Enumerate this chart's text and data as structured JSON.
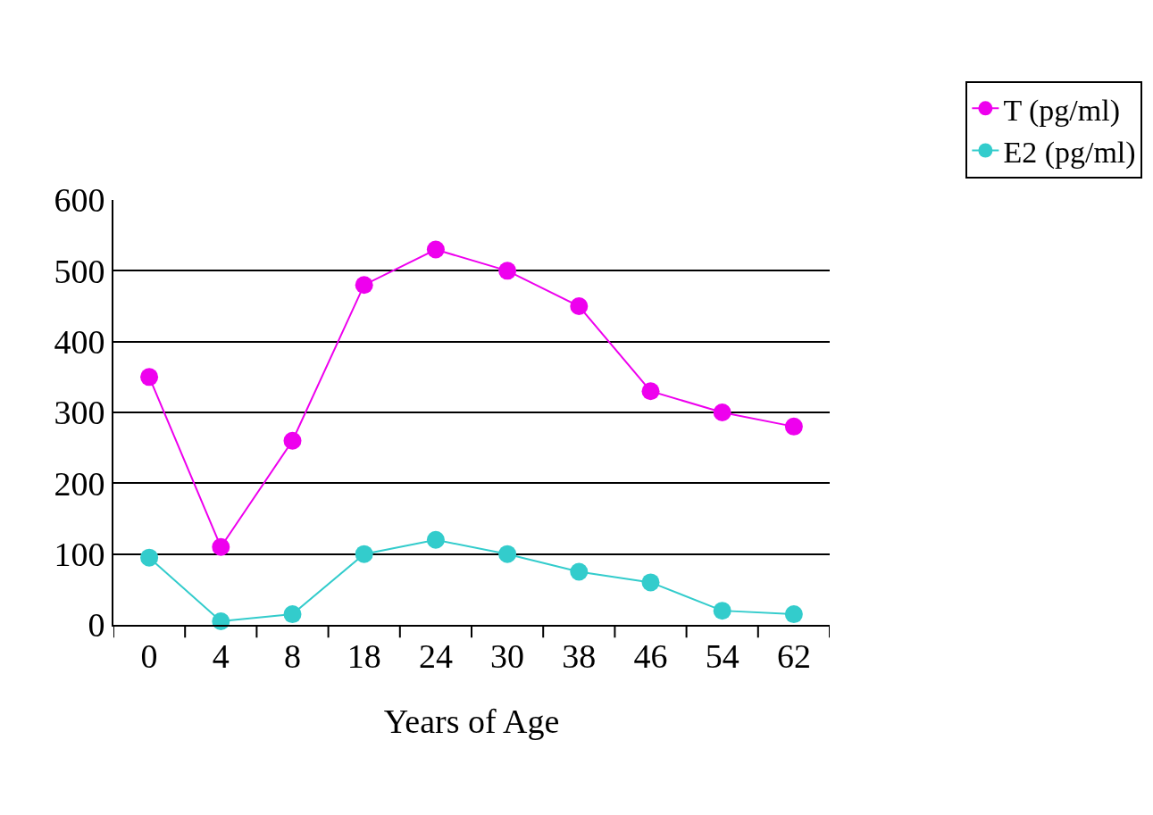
{
  "chart_data": {
    "type": "line",
    "xlabel": "Years of Age",
    "categories": [
      "0",
      "4",
      "8",
      "18",
      "24",
      "30",
      "38",
      "46",
      "54",
      "62"
    ],
    "series": [
      {
        "name": "T (pg/ml)",
        "color": "#ee00ee",
        "values": [
          350,
          110,
          260,
          480,
          530,
          500,
          450,
          330,
          300,
          280
        ]
      },
      {
        "name": "E2 (pg/ml)",
        "color": "#33cccc",
        "values": [
          95,
          5,
          15,
          100,
          120,
          100,
          75,
          60,
          20,
          15
        ]
      }
    ],
    "ylim": [
      0,
      600
    ],
    "yticks": [
      0,
      100,
      200,
      300,
      400,
      500,
      600
    ],
    "grid": "y",
    "legend": "top right",
    "marker": "circle",
    "line_style": "solid"
  }
}
